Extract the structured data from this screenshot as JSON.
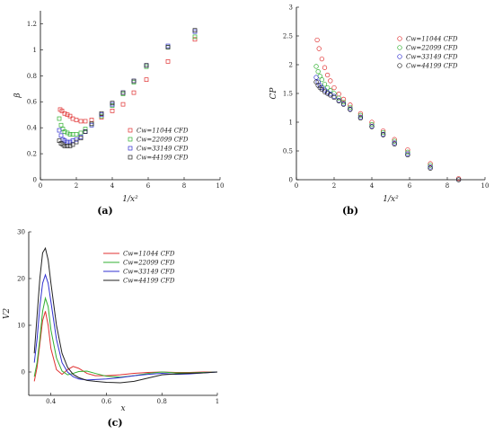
{
  "chart_data": [
    {
      "type": "scatter",
      "panel_label": "(a)",
      "xlabel": "1/x²",
      "ylabel": "β",
      "xlim": [
        0,
        10
      ],
      "ylim": [
        0,
        1.3
      ],
      "xticks": [
        "0",
        "2",
        "4",
        "6",
        "8",
        "10"
      ],
      "xtick_values": [
        0,
        2,
        4,
        6,
        8,
        10
      ],
      "yticks": [
        "0",
        "0.2",
        "0.4",
        "0.6",
        "0.8",
        "1",
        "1.2"
      ],
      "ytick_values": [
        0,
        0.2,
        0.4,
        0.6,
        0.8,
        1.0,
        1.2
      ],
      "marker": "square",
      "legend_position": "lower-right",
      "series": [
        {
          "name": "Cw=11044 CFD",
          "color": "#e03030",
          "x": [
            1.1,
            1.2,
            1.35,
            1.5,
            1.65,
            1.8,
            2.0,
            2.25,
            2.5,
            2.85,
            3.4,
            4.0,
            4.6,
            5.2,
            5.9,
            7.1,
            8.6
          ],
          "y": [
            0.54,
            0.53,
            0.51,
            0.5,
            0.49,
            0.47,
            0.46,
            0.45,
            0.45,
            0.46,
            0.48,
            0.53,
            0.58,
            0.67,
            0.77,
            0.91,
            1.08
          ]
        },
        {
          "name": "Cw=22099 CFD",
          "color": "#30b030",
          "x": [
            1.05,
            1.15,
            1.25,
            1.35,
            1.5,
            1.65,
            1.8,
            2.0,
            2.25,
            2.5,
            2.85,
            3.4,
            4.0,
            4.6,
            5.2,
            5.9,
            7.1,
            8.6
          ],
          "y": [
            0.47,
            0.42,
            0.39,
            0.37,
            0.36,
            0.35,
            0.35,
            0.35,
            0.36,
            0.39,
            0.43,
            0.49,
            0.57,
            0.66,
            0.75,
            0.87,
            1.02,
            1.1
          ]
        },
        {
          "name": "Cw=33149 CFD",
          "color": "#3030d0",
          "x": [
            1.05,
            1.15,
            1.25,
            1.35,
            1.5,
            1.65,
            1.8,
            2.0,
            2.25,
            2.5,
            2.85,
            3.4,
            4.0,
            4.6,
            5.2,
            5.9,
            7.1,
            8.6
          ],
          "y": [
            0.38,
            0.34,
            0.31,
            0.3,
            0.29,
            0.29,
            0.3,
            0.31,
            0.33,
            0.37,
            0.42,
            0.5,
            0.58,
            0.67,
            0.76,
            0.88,
            1.03,
            1.14
          ]
        },
        {
          "name": "Cw=44199 CFD",
          "color": "#222222",
          "x": [
            1.05,
            1.15,
            1.25,
            1.35,
            1.5,
            1.65,
            1.8,
            2.0,
            2.25,
            2.5,
            2.85,
            3.4,
            4.0,
            4.6,
            5.2,
            5.9,
            7.1,
            8.6
          ],
          "y": [
            0.3,
            0.28,
            0.27,
            0.26,
            0.26,
            0.26,
            0.27,
            0.29,
            0.32,
            0.37,
            0.43,
            0.51,
            0.59,
            0.67,
            0.76,
            0.88,
            1.02,
            1.15
          ]
        }
      ]
    },
    {
      "type": "scatter",
      "panel_label": "(b)",
      "xlabel": "1/x²",
      "ylabel": "CP",
      "xlim": [
        0,
        10
      ],
      "ylim": [
        0,
        3
      ],
      "xticks": [
        "0",
        "2",
        "4",
        "6",
        "8",
        "10"
      ],
      "xtick_values": [
        0,
        2,
        4,
        6,
        8,
        10
      ],
      "yticks": [
        "0",
        "0.5",
        "1",
        "1.5",
        "2",
        "2.5",
        "3"
      ],
      "ytick_values": [
        0,
        0.5,
        1,
        1.5,
        2,
        2.5,
        3
      ],
      "marker": "circle",
      "legend_position": "top-right",
      "series": [
        {
          "name": "Cw=11044 CFD",
          "color": "#e03030",
          "x": [
            1.1,
            1.2,
            1.35,
            1.5,
            1.65,
            1.8,
            2.0,
            2.25,
            2.5,
            2.85,
            3.4,
            4.0,
            4.6,
            5.2,
            5.9,
            7.1,
            8.6
          ],
          "y": [
            2.43,
            2.28,
            2.1,
            1.95,
            1.82,
            1.72,
            1.6,
            1.49,
            1.4,
            1.3,
            1.15,
            1.0,
            0.85,
            0.7,
            0.52,
            0.28,
            0.02
          ]
        },
        {
          "name": "Cw=22099 CFD",
          "color": "#30b030",
          "x": [
            1.05,
            1.15,
            1.25,
            1.35,
            1.5,
            1.65,
            1.8,
            2.0,
            2.25,
            2.5,
            2.85,
            3.4,
            4.0,
            4.6,
            5.2,
            5.9,
            7.1,
            8.6
          ],
          "y": [
            1.97,
            1.88,
            1.8,
            1.74,
            1.66,
            1.6,
            1.55,
            1.5,
            1.42,
            1.35,
            1.26,
            1.12,
            0.96,
            0.82,
            0.67,
            0.48,
            0.25,
            0.0
          ]
        },
        {
          "name": "Cw=33149 CFD",
          "color": "#3030d0",
          "x": [
            1.05,
            1.15,
            1.25,
            1.35,
            1.5,
            1.65,
            1.8,
            2.0,
            2.25,
            2.5,
            2.85,
            3.4,
            4.0,
            4.6,
            5.2,
            5.9,
            7.1,
            8.6
          ],
          "y": [
            1.78,
            1.7,
            1.64,
            1.6,
            1.56,
            1.52,
            1.49,
            1.45,
            1.38,
            1.32,
            1.23,
            1.09,
            0.93,
            0.79,
            0.64,
            0.45,
            0.22,
            0.0
          ]
        },
        {
          "name": "Cw=44199 CFD",
          "color": "#222222",
          "x": [
            1.05,
            1.15,
            1.25,
            1.35,
            1.5,
            1.65,
            1.8,
            2.0,
            2.25,
            2.5,
            2.85,
            3.4,
            4.0,
            4.6,
            5.2,
            5.9,
            7.1,
            8.6
          ],
          "y": [
            1.7,
            1.64,
            1.6,
            1.57,
            1.53,
            1.5,
            1.47,
            1.43,
            1.37,
            1.31,
            1.22,
            1.07,
            0.92,
            0.78,
            0.62,
            0.43,
            0.2,
            0.0
          ]
        }
      ]
    },
    {
      "type": "line",
      "panel_label": "(c)",
      "xlabel": "x",
      "ylabel": "V2",
      "xlim": [
        0.32,
        1.0
      ],
      "ylim": [
        -5,
        30
      ],
      "xticks": [
        "0.4",
        "0.6",
        "0.8",
        "1"
      ],
      "xtick_values": [
        0.4,
        0.6,
        0.8,
        1.0
      ],
      "yticks": [
        "0",
        "10",
        "20",
        "30"
      ],
      "ytick_values": [
        0,
        10,
        20,
        30
      ],
      "legend_position": "top-right",
      "series": [
        {
          "name": "Cw=11044 CFD",
          "color": "#e03030",
          "x": [
            0.34,
            0.35,
            0.36,
            0.37,
            0.38,
            0.39,
            0.4,
            0.42,
            0.44,
            0.46,
            0.48,
            0.5,
            0.53,
            0.56,
            0.6,
            0.65,
            0.7,
            0.75,
            0.8,
            0.85,
            0.9,
            0.95,
            1.0
          ],
          "y": [
            -2,
            1,
            6,
            11,
            13,
            10,
            5,
            0.5,
            -0.5,
            0.5,
            1.2,
            0.8,
            -0.3,
            -0.8,
            -0.8,
            -0.6,
            -0.3,
            -0.1,
            0.0,
            -0.1,
            -0.1,
            0.0,
            0.0
          ]
        },
        {
          "name": "Cw=22099 CFD",
          "color": "#30b030",
          "x": [
            0.34,
            0.35,
            0.36,
            0.37,
            0.38,
            0.39,
            0.4,
            0.42,
            0.44,
            0.46,
            0.48,
            0.5,
            0.53,
            0.56,
            0.6,
            0.65,
            0.7,
            0.75,
            0.8,
            0.85,
            0.9,
            0.95,
            1.0
          ],
          "y": [
            -1,
            2,
            7,
            13,
            15.8,
            14,
            9,
            3,
            0.2,
            -0.6,
            -0.3,
            0.1,
            0.2,
            -0.3,
            -0.9,
            -1.1,
            -0.8,
            -0.3,
            0.0,
            -0.2,
            -0.2,
            -0.1,
            0.0
          ]
        },
        {
          "name": "Cw=33149 CFD",
          "color": "#3030d0",
          "x": [
            0.34,
            0.35,
            0.36,
            0.37,
            0.38,
            0.39,
            0.4,
            0.42,
            0.44,
            0.46,
            0.48,
            0.5,
            0.53,
            0.56,
            0.6,
            0.65,
            0.7,
            0.75,
            0.8,
            0.85,
            0.9,
            0.95,
            1.0
          ],
          "y": [
            2,
            7,
            14,
            19,
            20.8,
            19,
            15,
            7,
            2,
            0,
            -1,
            -1.5,
            -1.7,
            -1.6,
            -1.5,
            -1.2,
            -0.8,
            -0.5,
            -0.3,
            -0.5,
            -0.4,
            -0.2,
            0.0
          ]
        },
        {
          "name": "Cw=44199 CFD",
          "color": "#222222",
          "x": [
            0.34,
            0.35,
            0.36,
            0.37,
            0.38,
            0.39,
            0.4,
            0.42,
            0.44,
            0.46,
            0.48,
            0.5,
            0.53,
            0.56,
            0.6,
            0.65,
            0.7,
            0.75,
            0.8,
            0.85,
            0.9,
            0.95,
            1.0
          ],
          "y": [
            4,
            12,
            20,
            25.5,
            26.5,
            24,
            19,
            10,
            4,
            1,
            -0.5,
            -1.2,
            -1.8,
            -2,
            -2.2,
            -2.3,
            -2,
            -1.3,
            -0.6,
            -0.4,
            -0.3,
            -0.2,
            0.0
          ]
        }
      ]
    }
  ]
}
